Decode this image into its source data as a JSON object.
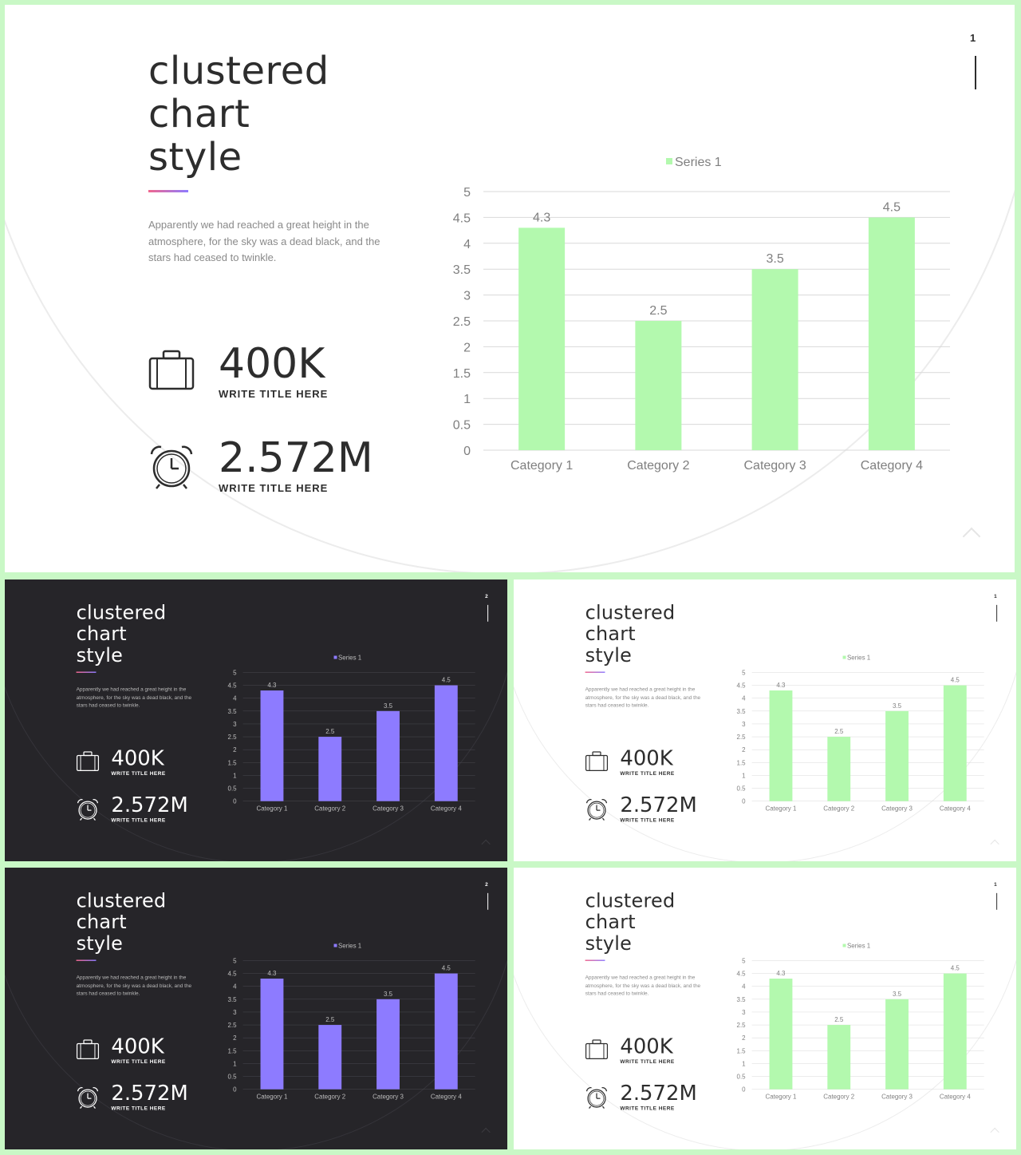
{
  "slides": [
    {
      "theme": "light",
      "page_number": "1",
      "title": "clustered\nchart\nstyle",
      "description": "Apparently we had reached a great height in the atmosphere, for the sky was a dead black, and the stars had ceased to twinkle.",
      "stats": [
        {
          "icon": "briefcase-icon",
          "value": "400K",
          "label": "WRITE TITLE HERE"
        },
        {
          "icon": "alarm-clock-icon",
          "value": "2.572M",
          "label": "WRITE TITLE HERE"
        }
      ],
      "bar_color": "#b3f9ae"
    },
    {
      "theme": "dark",
      "page_number": "2",
      "title": "clustered\nchart\nstyle",
      "description": "Apparently we had reached a great height in the atmosphere, for the sky was a dead black, and the stars had ceased to twinkle.",
      "stats": [
        {
          "icon": "briefcase-icon",
          "value": "400K",
          "label": "WRITE TITLE HERE"
        },
        {
          "icon": "alarm-clock-icon",
          "value": "2.572M",
          "label": "WRITE TITLE HERE"
        }
      ],
      "bar_color": "#8d7bff"
    },
    {
      "theme": "light",
      "page_number": "1",
      "title": "clustered\nchart\nstyle",
      "description": "Apparently we had reached a great height in the atmosphere, for the sky was a dead black, and the stars had ceased to twinkle.",
      "stats": [
        {
          "icon": "briefcase-icon",
          "value": "400K",
          "label": "WRITE TITLE HERE"
        },
        {
          "icon": "alarm-clock-icon",
          "value": "2.572M",
          "label": "WRITE TITLE HERE"
        }
      ],
      "bar_color": "#b3f9ae"
    },
    {
      "theme": "dark",
      "page_number": "2",
      "title": "clustered\nchart\nstyle",
      "description": "Apparently we had reached a great height in the atmosphere, for the sky was a dead black, and the stars had ceased to twinkle.",
      "stats": [
        {
          "icon": "briefcase-icon",
          "value": "400K",
          "label": "WRITE TITLE HERE"
        },
        {
          "icon": "alarm-clock-icon",
          "value": "2.572M",
          "label": "WRITE TITLE HERE"
        }
      ],
      "bar_color": "#8d7bff"
    },
    {
      "theme": "light",
      "page_number": "1",
      "title": "clustered\nchart\nstyle",
      "description": "Apparently we had reached a great height in the atmosphere, for the sky was a dead black, and the stars had ceased to twinkle.",
      "stats": [
        {
          "icon": "briefcase-icon",
          "value": "400K",
          "label": "WRITE TITLE HERE"
        },
        {
          "icon": "alarm-clock-icon",
          "value": "2.572M",
          "label": "WRITE TITLE HERE"
        }
      ],
      "bar_color": "#b3f9ae"
    }
  ],
  "chart_data": {
    "type": "bar",
    "categories": [
      "Category 1",
      "Category 2",
      "Category 3",
      "Category 4"
    ],
    "series": [
      {
        "name": "Series 1",
        "values": [
          4.3,
          2.5,
          3.5,
          4.5
        ]
      }
    ],
    "data_labels": [
      "4.3",
      "2.5",
      "3.5",
      "4.5"
    ],
    "ylim": [
      0,
      5
    ],
    "yticks": [
      "0",
      "0.5",
      "1",
      "1.5",
      "2",
      "2.5",
      "3",
      "3.5",
      "4",
      "4.5",
      "5"
    ],
    "legend": "top-center",
    "grid": true,
    "xlabel": "",
    "ylabel": ""
  },
  "colors": {
    "page_background": "#c9f8c6",
    "light_slide": "#ffffff",
    "dark_slide": "#262529",
    "green_bar": "#b3f9ae",
    "purple_bar": "#8d7bff"
  }
}
